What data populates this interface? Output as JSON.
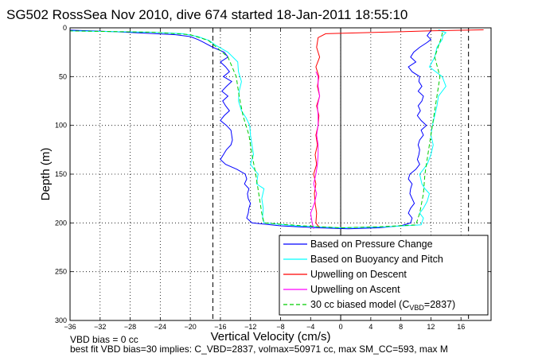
{
  "chart_data": {
    "type": "line",
    "title": "SG502 RossSea Nov 2010, dive 674 started 18-Jan-2011 18:55:10",
    "xlabel": "Vertical Velocity (cm/s)",
    "ylabel": "Depth (m)",
    "xlim": [
      -36,
      20
    ],
    "ylim": [
      0,
      300
    ],
    "y_reversed": true,
    "grid": true,
    "xticks": [
      -36,
      -32,
      -28,
      -24,
      -20,
      -16,
      -12,
      -8,
      -4,
      0,
      4,
      8,
      12,
      16
    ],
    "yticks": [
      0,
      50,
      100,
      150,
      200,
      250,
      300
    ],
    "vlines": [
      -17,
      17
    ],
    "vline_style": "dashed",
    "zero_line": 0,
    "legend_placement": "bottom-right",
    "series": [
      {
        "name": "Based on Pressure Change",
        "color": "#0000ff",
        "points": [
          [
            -37,
            2
          ],
          [
            -30,
            4
          ],
          [
            -26,
            5.5
          ],
          [
            -22,
            7
          ],
          [
            -20,
            9
          ],
          [
            -19,
            12
          ],
          [
            -18.2,
            15
          ],
          [
            -17,
            20
          ],
          [
            -15.5,
            25
          ],
          [
            -15,
            30
          ],
          [
            -16,
            35
          ],
          [
            -15.3,
            40
          ],
          [
            -14.8,
            45
          ],
          [
            -15.6,
            50
          ],
          [
            -14.5,
            55
          ],
          [
            -15.2,
            60
          ],
          [
            -15.8,
            65
          ],
          [
            -15,
            70
          ],
          [
            -15.7,
            75
          ],
          [
            -15.3,
            80
          ],
          [
            -14.8,
            85
          ],
          [
            -15.5,
            90
          ],
          [
            -16,
            95
          ],
          [
            -15.2,
            100
          ],
          [
            -14.6,
            105
          ],
          [
            -14.5,
            110
          ],
          [
            -14.4,
            115
          ],
          [
            -14.6,
            120
          ],
          [
            -15.2,
            125
          ],
          [
            -15.6,
            130
          ],
          [
            -16,
            135
          ],
          [
            -15.3,
            140
          ],
          [
            -13.8,
            145
          ],
          [
            -12.7,
            150
          ],
          [
            -12.5,
            155
          ],
          [
            -12.8,
            160
          ],
          [
            -12.2,
            165
          ],
          [
            -12.4,
            170
          ],
          [
            -12.3,
            175
          ],
          [
            -12,
            180
          ],
          [
            -12.2,
            185
          ],
          [
            -12.3,
            190
          ],
          [
            -12.5,
            195
          ],
          [
            -11.8,
            200
          ],
          [
            -8,
            203
          ],
          [
            -3,
            205
          ],
          [
            1,
            206
          ],
          [
            5,
            205
          ],
          [
            8,
            203
          ],
          [
            9.3,
            200
          ],
          [
            9.5,
            195
          ],
          [
            9,
            190
          ],
          [
            9.3,
            185
          ],
          [
            9.8,
            180
          ],
          [
            9.5,
            175
          ],
          [
            9.2,
            170
          ],
          [
            9.3,
            165
          ],
          [
            9.5,
            160
          ],
          [
            9,
            155
          ],
          [
            9.2,
            150
          ],
          [
            10,
            145
          ],
          [
            10.5,
            140
          ],
          [
            10.2,
            135
          ],
          [
            10.4,
            130
          ],
          [
            10.5,
            125
          ],
          [
            10.3,
            120
          ],
          [
            10.5,
            115
          ],
          [
            11,
            110
          ],
          [
            10.7,
            105
          ],
          [
            11.4,
            100
          ],
          [
            10.7,
            95
          ],
          [
            10.2,
            90
          ],
          [
            10.6,
            85
          ],
          [
            10.3,
            80
          ],
          [
            10.8,
            75
          ],
          [
            11,
            70
          ],
          [
            10.3,
            65
          ],
          [
            10.8,
            60
          ],
          [
            10.4,
            55
          ],
          [
            10.5,
            50
          ],
          [
            9.5,
            45
          ],
          [
            9,
            40
          ],
          [
            10,
            35
          ],
          [
            9.3,
            30
          ],
          [
            9.7,
            25
          ],
          [
            10.5,
            20
          ],
          [
            11.5,
            15
          ],
          [
            12,
            12
          ],
          [
            11.5,
            8
          ],
          [
            11.8,
            5
          ],
          [
            12,
            3
          ]
        ]
      },
      {
        "name": "Based on Buoyancy and Pitch",
        "color": "#00ffff",
        "points": [
          [
            -37,
            3
          ],
          [
            -25,
            4.5
          ],
          [
            -21,
            6
          ],
          [
            -19,
            9
          ],
          [
            -17.5,
            13
          ],
          [
            -16.6,
            18
          ],
          [
            -15,
            25
          ],
          [
            -13.7,
            35
          ],
          [
            -13.6,
            45
          ],
          [
            -13.2,
            55
          ],
          [
            -13.5,
            65
          ],
          [
            -13.6,
            75
          ],
          [
            -13.2,
            85
          ],
          [
            -12.6,
            92
          ],
          [
            -12.1,
            100
          ],
          [
            -12,
            110
          ],
          [
            -11.8,
            120
          ],
          [
            -11.6,
            130
          ],
          [
            -12,
            140
          ],
          [
            -11,
            150
          ],
          [
            -11.2,
            160
          ],
          [
            -10.2,
            165
          ],
          [
            -10.5,
            175
          ],
          [
            -10.3,
            185
          ],
          [
            -10.4,
            195
          ],
          [
            -10.2,
            200
          ],
          [
            -6,
            203
          ],
          [
            0,
            205
          ],
          [
            6,
            204
          ],
          [
            10.7,
            202
          ],
          [
            11,
            195
          ],
          [
            10.5,
            190
          ],
          [
            11,
            185
          ],
          [
            11.5,
            178
          ],
          [
            11.8,
            170
          ],
          [
            11.2,
            165
          ],
          [
            10.8,
            160
          ],
          [
            10.5,
            150
          ],
          [
            11,
            145
          ],
          [
            11.5,
            140
          ],
          [
            12,
            130
          ],
          [
            12.3,
            120
          ],
          [
            12,
            110
          ],
          [
            12.2,
            100
          ],
          [
            12.5,
            90
          ],
          [
            12.8,
            80
          ],
          [
            13,
            70
          ],
          [
            14,
            60
          ],
          [
            13.5,
            50
          ],
          [
            11.8,
            40
          ],
          [
            12.5,
            30
          ],
          [
            12.8,
            20
          ],
          [
            13.5,
            12
          ],
          [
            13.6,
            8
          ],
          [
            14,
            5
          ],
          [
            13,
            2
          ]
        ]
      },
      {
        "name": "Upwelling on Descent",
        "color": "#ff0000",
        "points": [
          [
            19,
            2
          ],
          [
            12,
            3
          ],
          [
            8,
            4
          ],
          [
            3,
            5
          ],
          [
            -2,
            6
          ],
          [
            -3,
            10
          ],
          [
            -3.2,
            20
          ],
          [
            -2.8,
            30
          ],
          [
            -3.3,
            40
          ],
          [
            -2.9,
            50
          ],
          [
            -3.1,
            60
          ],
          [
            -2.8,
            70
          ],
          [
            -3.2,
            80
          ],
          [
            -2.9,
            90
          ],
          [
            -3,
            100
          ],
          [
            -3.3,
            110
          ],
          [
            -3.1,
            120
          ],
          [
            -3.4,
            130
          ],
          [
            -3.2,
            140
          ],
          [
            -3.6,
            150
          ],
          [
            -3.3,
            160
          ],
          [
            -3.5,
            170
          ],
          [
            -3.4,
            180
          ],
          [
            -3.2,
            190
          ],
          [
            -3.3,
            200
          ],
          [
            -2.8,
            205
          ]
        ]
      },
      {
        "name": "Upwelling on Ascent",
        "color": "#ff00ff",
        "points": [
          [
            -3.6,
            206
          ],
          [
            -3.8,
            200
          ],
          [
            -4,
            190
          ],
          [
            -3.5,
            180
          ],
          [
            -3.2,
            170
          ],
          [
            -3.6,
            160
          ],
          [
            -3.3,
            150
          ],
          [
            -3.1,
            140
          ],
          [
            -3,
            130
          ],
          [
            -3,
            120
          ],
          [
            -3.2,
            110
          ],
          [
            -3,
            100
          ],
          [
            -3,
            90
          ],
          [
            -3.1,
            80
          ],
          [
            -2.8,
            70
          ],
          [
            -3,
            60
          ],
          [
            -3,
            50
          ],
          [
            -3.3,
            45
          ]
        ]
      },
      {
        "name": "30 cc biased model (C_VBD=2837)",
        "color": "#00cc00",
        "style": "dashed",
        "points": [
          [
            -37,
            3
          ],
          [
            -25,
            4.5
          ],
          [
            -20,
            7
          ],
          [
            -17.6,
            13
          ],
          [
            -16.5,
            20
          ],
          [
            -15,
            30
          ],
          [
            -13.9,
            50
          ],
          [
            -13.5,
            70
          ],
          [
            -13,
            90
          ],
          [
            -12.2,
            110
          ],
          [
            -11.8,
            130
          ],
          [
            -11.3,
            150
          ],
          [
            -10.9,
            170
          ],
          [
            -10.5,
            190
          ],
          [
            -10.2,
            200
          ],
          [
            -5,
            203
          ],
          [
            0,
            205
          ],
          [
            5,
            204
          ],
          [
            10,
            202
          ],
          [
            10.5,
            190
          ],
          [
            11,
            170
          ],
          [
            11.2,
            150
          ],
          [
            11.6,
            130
          ],
          [
            12,
            110
          ],
          [
            12.4,
            90
          ],
          [
            12.8,
            70
          ],
          [
            13.2,
            50
          ],
          [
            12.5,
            30
          ],
          [
            13.3,
            12
          ],
          [
            13.6,
            3
          ]
        ]
      }
    ],
    "legend": {
      "entries": [
        {
          "label": "Based on Pressure Change",
          "color": "#0000ff",
          "style": "solid"
        },
        {
          "label": "Based on Buoyancy and Pitch",
          "color": "#00ffff",
          "style": "solid"
        },
        {
          "label": "Upwelling on Descent",
          "color": "#ff0000",
          "style": "solid"
        },
        {
          "label": "Upwelling on Ascent",
          "color": "#ff00ff",
          "style": "solid"
        },
        {
          "label": "30 cc biased model (C",
          "sub": "VBD",
          "suffix": "=2837)",
          "color": "#00cc00",
          "style": "dashed"
        }
      ]
    }
  },
  "notes": {
    "line1": "VBD bias = 0 cc",
    "line2": "best fit VBD bias=30 implies: C_VBD=2837, volmax=50971 cc, max SM_CC=593, max M"
  }
}
